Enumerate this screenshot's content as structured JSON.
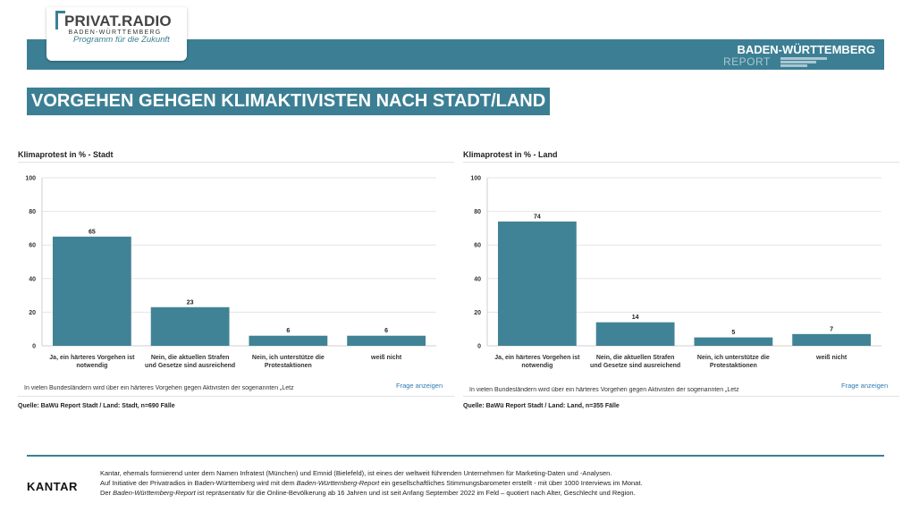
{
  "brand": {
    "logo_title": "PRIVAT.RADIO",
    "logo_subtitle": "BADEN-WÜRTTEMBERG",
    "logo_tagline": "Programm für die Zukunft",
    "report_title": "BADEN-WÜRTTEMBERG",
    "report_subtitle": "REPORT"
  },
  "headline": "VORGEHEN GEHGEN KLIMAKTIVISTEN NACH STADT/LAND",
  "colors": {
    "accent": "#3c7f94",
    "bar": "#418396",
    "link": "#2e7cb3"
  },
  "chart_data": [
    {
      "type": "bar",
      "title": "Klimaprotest in % - Stadt",
      "categories": [
        [
          "Ja, ein härteres Vorgehen ist",
          "notwendig"
        ],
        [
          "Nein, die aktuellen Strafen",
          "und Gesetze sind ausreichend"
        ],
        [
          "Nein, ich unterstütze die",
          "Protestaktionen"
        ],
        [
          "weiß nicht"
        ]
      ],
      "values": [
        65,
        23,
        6,
        6
      ],
      "ylim": [
        0,
        100
      ],
      "yticks": [
        0,
        20,
        40,
        60,
        80,
        100
      ],
      "grid": true,
      "question": "In vielen Bundesländern wird über ein härteres Vorgehen gegen Aktivisten der sogenannten „Letz",
      "link": "Frage anzeigen",
      "source": "Quelle: BaWü Report Stadt / Land: Stadt, n=690 Fälle"
    },
    {
      "type": "bar",
      "title": "Klimaprotest in % - Land",
      "categories": [
        [
          "Ja, ein härteres Vorgehen ist",
          "notwendig"
        ],
        [
          "Nein, die aktuellen Strafen",
          "und Gesetze sind ausreichend"
        ],
        [
          "Nein, ich unterstütze die",
          "Protestaktionen"
        ],
        [
          "weiß nicht"
        ]
      ],
      "values": [
        74,
        14,
        5,
        7
      ],
      "ylim": [
        0,
        100
      ],
      "yticks": [
        0,
        20,
        40,
        60,
        80,
        100
      ],
      "grid": true,
      "question": "In vielen Bundesländern wird über ein härteres Vorgehen gegen Aktivisten der sogenannten „Letz",
      "link": "Frage anzeigen",
      "source": "Quelle: BaWü Report Stadt / Land: Land, n=355 Fälle"
    }
  ],
  "footer": {
    "kantar": "KANTAR",
    "line1": "Kantar, ehemals formierend unter dem Namen Infratest (München) und Emnid (Bielefeld), ist eines der weltweit führenden Unternehmen für Marketing-Daten und -Analysen.",
    "line2_a": "Auf Initiative der Privatradios in Baden-Württemberg wird mit dem ",
    "line2_b": "Baden-Württemberg-Report",
    "line2_c": " ein gesellschaftliches Stimmungsbarometer erstellt - mit über 1000 Interviews im Monat.",
    "line3_a": "Der ",
    "line3_b": "Baden-Württemberg-Report",
    "line3_c": " ist repräsentativ für die Online-Bevölkerung ab 16 Jahren und ist seit Anfang September 2022 im Feld – quotiert nach Alter, Geschlecht und Region."
  }
}
